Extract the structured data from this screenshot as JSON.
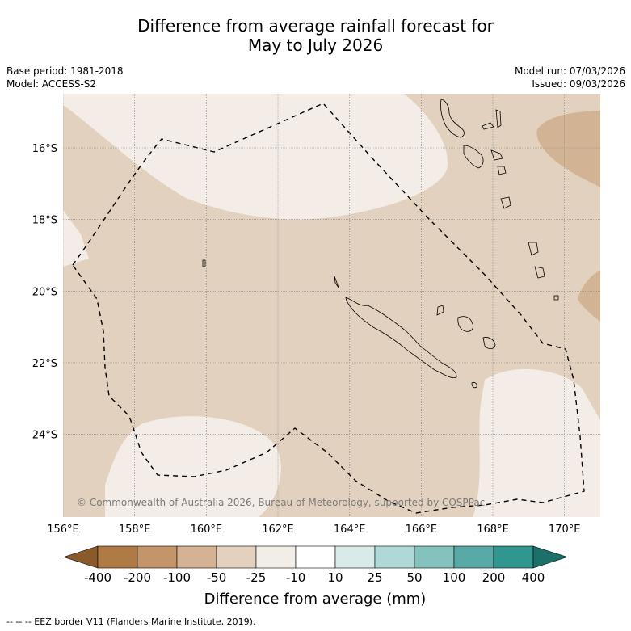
{
  "title_line1": "Difference from average rainfall forecast for",
  "title_line2": "May to July 2026",
  "base_period": "Base period: 1981-2018",
  "model": "Model: ACCESS-S2",
  "model_run": "Model run: 07/03/2026",
  "issued": "Issued: 09/03/2026",
  "credit": "© Commonwealth of Australia 2026, Bureau of Meteorology, supported by COSPPac",
  "lon_ticks": [
    "156°E",
    "158°E",
    "160°E",
    "162°E",
    "164°E",
    "166°E",
    "168°E",
    "170°E"
  ],
  "lat_ticks": [
    "16°S",
    "18°S",
    "20°S",
    "22°S",
    "24°S"
  ],
  "colorbar": {
    "title": "Difference from average (mm)",
    "labels": [
      "-400",
      "-200",
      "-100",
      "-50",
      "-25",
      "-10",
      "10",
      "25",
      "50",
      "100",
      "200",
      "400"
    ],
    "colors": [
      "#8b5a2b",
      "#b07a45",
      "#c4946a",
      "#d5b293",
      "#e4d0bf",
      "#f3ede8",
      "#ffffff",
      "#d8ebe8",
      "#afd9d6",
      "#84c2be",
      "#59aaa6",
      "#329690",
      "#1d6f6a"
    ]
  },
  "legend_footer": "-- -- -- EEZ border V11 (Flanders Marine Institute, 2019).",
  "map_colors": {
    "base": "#e3d1bf",
    "light": "#f4ede7",
    "dark": "#d2b394",
    "eez": "#000000"
  }
}
